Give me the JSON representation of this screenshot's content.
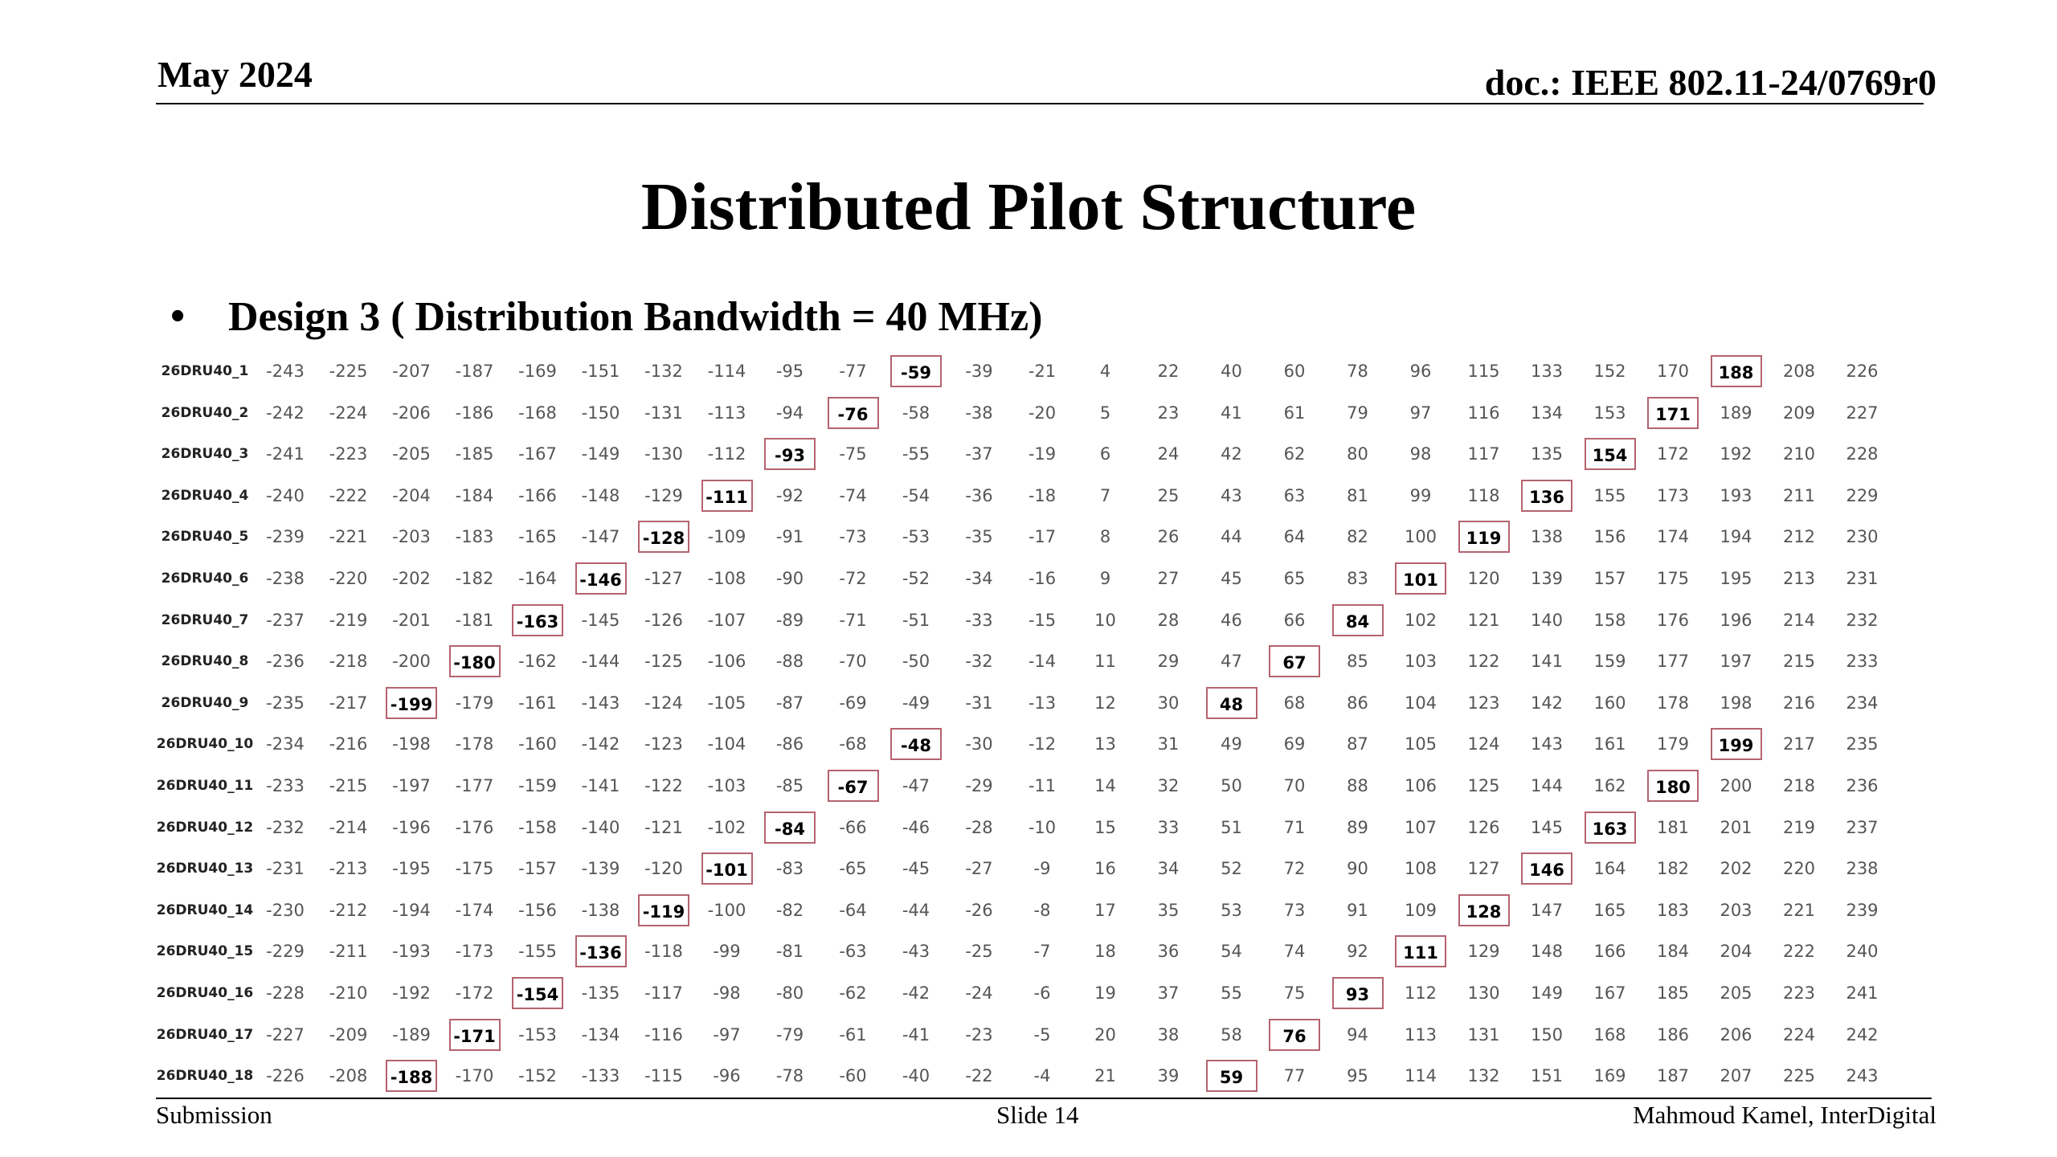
{
  "header": {
    "date": "May 2024",
    "doc": "doc.: IEEE 802.11-24/0769r0"
  },
  "slide": {
    "title": "Distributed Pilot Structure",
    "bullet_symbol": "•",
    "bullet": "Design 3 ( Distribution Bandwidth = 40 MHz)"
  },
  "table": {
    "rows": [
      {
        "label": "26DRU40_1",
        "values": [
          -243,
          -225,
          -207,
          -187,
          -169,
          -151,
          -132,
          -114,
          -95,
          -77,
          -59,
          -39,
          -21,
          4,
          22,
          40,
          60,
          78,
          96,
          115,
          133,
          152,
          170,
          188,
          208,
          226
        ],
        "pilots": [
          -59,
          188
        ]
      },
      {
        "label": "26DRU40_2",
        "values": [
          -242,
          -224,
          -206,
          -186,
          -168,
          -150,
          -131,
          -113,
          -94,
          -76,
          -58,
          -38,
          -20,
          5,
          23,
          41,
          61,
          79,
          97,
          116,
          134,
          153,
          171,
          189,
          209,
          227
        ],
        "pilots": [
          -76,
          171
        ]
      },
      {
        "label": "26DRU40_3",
        "values": [
          -241,
          -223,
          -205,
          -185,
          -167,
          -149,
          -130,
          -112,
          -93,
          -75,
          -55,
          -37,
          -19,
          6,
          24,
          42,
          62,
          80,
          98,
          117,
          135,
          154,
          172,
          192,
          210,
          228
        ],
        "pilots": [
          -93,
          154
        ]
      },
      {
        "label": "26DRU40_4",
        "values": [
          -240,
          -222,
          -204,
          -184,
          -166,
          -148,
          -129,
          -111,
          -92,
          -74,
          -54,
          -36,
          -18,
          7,
          25,
          43,
          63,
          81,
          99,
          118,
          136,
          155,
          173,
          193,
          211,
          229
        ],
        "pilots": [
          -111,
          136
        ]
      },
      {
        "label": "26DRU40_5",
        "values": [
          -239,
          -221,
          -203,
          -183,
          -165,
          -147,
          -128,
          -109,
          -91,
          -73,
          -53,
          -35,
          -17,
          8,
          26,
          44,
          64,
          82,
          100,
          119,
          138,
          156,
          174,
          194,
          212,
          230
        ],
        "pilots": [
          -128,
          119
        ]
      },
      {
        "label": "26DRU40_6",
        "values": [
          -238,
          -220,
          -202,
          -182,
          -164,
          -146,
          -127,
          -108,
          -90,
          -72,
          -52,
          -34,
          -16,
          9,
          27,
          45,
          65,
          83,
          101,
          120,
          139,
          157,
          175,
          195,
          213,
          231
        ],
        "pilots": [
          -146,
          101
        ]
      },
      {
        "label": "26DRU40_7",
        "values": [
          -237,
          -219,
          -201,
          -181,
          -163,
          -145,
          -126,
          -107,
          -89,
          -71,
          -51,
          -33,
          -15,
          10,
          28,
          46,
          66,
          84,
          102,
          121,
          140,
          158,
          176,
          196,
          214,
          232
        ],
        "pilots": [
          -163,
          84
        ]
      },
      {
        "label": "26DRU40_8",
        "values": [
          -236,
          -218,
          -200,
          -180,
          -162,
          -144,
          -125,
          -106,
          -88,
          -70,
          -50,
          -32,
          -14,
          11,
          29,
          47,
          67,
          85,
          103,
          122,
          141,
          159,
          177,
          197,
          215,
          233
        ],
        "pilots": [
          -180,
          67
        ]
      },
      {
        "label": "26DRU40_9",
        "values": [
          -235,
          -217,
          -199,
          -179,
          -161,
          -143,
          -124,
          -105,
          -87,
          -69,
          -49,
          -31,
          -13,
          12,
          30,
          48,
          68,
          86,
          104,
          123,
          142,
          160,
          178,
          198,
          216,
          234
        ],
        "pilots": [
          -199,
          48
        ]
      },
      {
        "label": "26DRU40_10",
        "values": [
          -234,
          -216,
          -198,
          -178,
          -160,
          -142,
          -123,
          -104,
          -86,
          -68,
          -48,
          -30,
          -12,
          13,
          31,
          49,
          69,
          87,
          105,
          124,
          143,
          161,
          179,
          199,
          217,
          235
        ],
        "pilots": [
          -48,
          199
        ]
      },
      {
        "label": "26DRU40_11",
        "values": [
          -233,
          -215,
          -197,
          -177,
          -159,
          -141,
          -122,
          -103,
          -85,
          -67,
          -47,
          -29,
          -11,
          14,
          32,
          50,
          70,
          88,
          106,
          125,
          144,
          162,
          180,
          200,
          218,
          236
        ],
        "pilots": [
          -67,
          180
        ]
      },
      {
        "label": "26DRU40_12",
        "values": [
          -232,
          -214,
          -196,
          -176,
          -158,
          -140,
          -121,
          -102,
          -84,
          -66,
          -46,
          -28,
          -10,
          15,
          33,
          51,
          71,
          89,
          107,
          126,
          145,
          163,
          181,
          201,
          219,
          237
        ],
        "pilots": [
          -84,
          163
        ]
      },
      {
        "label": "26DRU40_13",
        "values": [
          -231,
          -213,
          -195,
          -175,
          -157,
          -139,
          -120,
          -101,
          -83,
          -65,
          -45,
          -27,
          -9,
          16,
          34,
          52,
          72,
          90,
          108,
          127,
          146,
          164,
          182,
          202,
          220,
          238
        ],
        "pilots": [
          -101,
          146
        ]
      },
      {
        "label": "26DRU40_14",
        "values": [
          -230,
          -212,
          -194,
          -174,
          -156,
          -138,
          -119,
          -100,
          -82,
          -64,
          -44,
          -26,
          -8,
          17,
          35,
          53,
          73,
          91,
          109,
          128,
          147,
          165,
          183,
          203,
          221,
          239
        ],
        "pilots": [
          -119,
          128
        ]
      },
      {
        "label": "26DRU40_15",
        "values": [
          -229,
          -211,
          -193,
          -173,
          -155,
          -136,
          -118,
          -99,
          -81,
          -63,
          -43,
          -25,
          -7,
          18,
          36,
          54,
          74,
          92,
          111,
          129,
          148,
          166,
          184,
          204,
          222,
          240
        ],
        "pilots": [
          -136,
          111
        ]
      },
      {
        "label": "26DRU40_16",
        "values": [
          -228,
          -210,
          -192,
          -172,
          -154,
          -135,
          -117,
          -98,
          -80,
          -62,
          -42,
          -24,
          -6,
          19,
          37,
          55,
          75,
          93,
          112,
          130,
          149,
          167,
          185,
          205,
          223,
          241
        ],
        "pilots": [
          -154,
          93
        ]
      },
      {
        "label": "26DRU40_17",
        "values": [
          -227,
          -209,
          -189,
          -171,
          -153,
          -134,
          -116,
          -97,
          -79,
          -61,
          -41,
          -23,
          -5,
          20,
          38,
          58,
          76,
          94,
          113,
          131,
          150,
          168,
          186,
          206,
          224,
          242
        ],
        "pilots": [
          -171,
          76
        ]
      },
      {
        "label": "26DRU40_18",
        "values": [
          -226,
          -208,
          -188,
          -170,
          -152,
          -133,
          -115,
          -96,
          -78,
          -60,
          -40,
          -22,
          -4,
          21,
          39,
          59,
          77,
          95,
          114,
          132,
          151,
          169,
          187,
          207,
          225,
          243
        ],
        "pilots": [
          -188,
          59
        ]
      }
    ]
  },
  "footer": {
    "left": "Submission",
    "center": "Slide 14",
    "right": "Mahmoud Kamel, InterDigital"
  },
  "colors": {
    "pilot_border": "#b5636f",
    "text": "#000000",
    "cell_text": "#555555"
  }
}
